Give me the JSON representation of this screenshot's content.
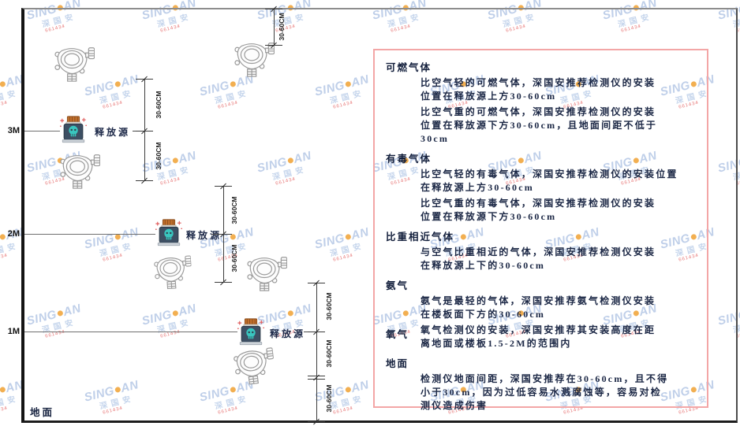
{
  "watermark": {
    "brand_prefix": "SING",
    "brand_suffix": "AN",
    "cn": "深国安",
    "red_text": "661434"
  },
  "axis": {
    "labels": [
      "3M",
      "2M",
      "1M"
    ],
    "ground_label": "地面"
  },
  "diagram": {
    "release_source_label": "释放源",
    "dim_label": "30-60CM"
  },
  "panel": {
    "sections": [
      {
        "header": "可燃气体",
        "inline": false,
        "paragraphs": [
          [
            "比空气轻的可燃气体，深国安推荐检测仪的安装",
            "位置在释放源上方30-60cm"
          ],
          [
            "比空气重的可燃气体，深国安推荐检测仪的安装",
            "位置在释放源下方30-60cm，且地面间距不低于",
            "30cm"
          ]
        ]
      },
      {
        "header": "有毒气体",
        "inline": false,
        "paragraphs": [
          [
            "比空气轻的有毒气体，深国安推荐检测仪的安装位置",
            "在释放源上方30-60cm"
          ],
          [
            "比空气重的有毒气体，深国安推荐检测仪的安装",
            "位置在释放源下方30-60cm"
          ]
        ]
      },
      {
        "header": "比重相近气体",
        "inline": false,
        "paragraphs": [
          [
            "与空气比重相近的气体，深国安推荐检测仪安装",
            "在释放源上下的30-60cm"
          ]
        ]
      },
      {
        "header": "氨气",
        "inline": false,
        "paragraphs": [
          [
            "氨气是最轻的气体，深国安推荐氨气检测仪安装",
            "在楼板面下方的30-60cm"
          ]
        ]
      },
      {
        "header": "氧气",
        "inline": true,
        "paragraphs": [
          [
            "氧气检测仪的安装，深国安推荐其安装高度在距",
            "离地面或楼板1.5-2M的范围内"
          ]
        ]
      },
      {
        "header": "地面",
        "inline": false,
        "paragraphs": [
          [
            "检测仪地面间距，深国安推荐在30-60cm，且不得",
            "小于30cm，因为过低容易水溅腐蚀等，容易对检",
            "测仪造成伤害"
          ]
        ]
      }
    ]
  },
  "colors": {
    "panel_border": "#f3a6a6",
    "wm_blue": "rgba(128,160,212,0.50)",
    "wm_blue2": "rgba(150,178,221,0.55)",
    "wm_dot": "rgba(240,161,50,0.85)",
    "wm_red": "rgba(226,92,92,0.85)",
    "source_teal": "#39c6bf",
    "source_cap_orange": "#c2702c",
    "source_body_slate": "#3d4f63"
  }
}
